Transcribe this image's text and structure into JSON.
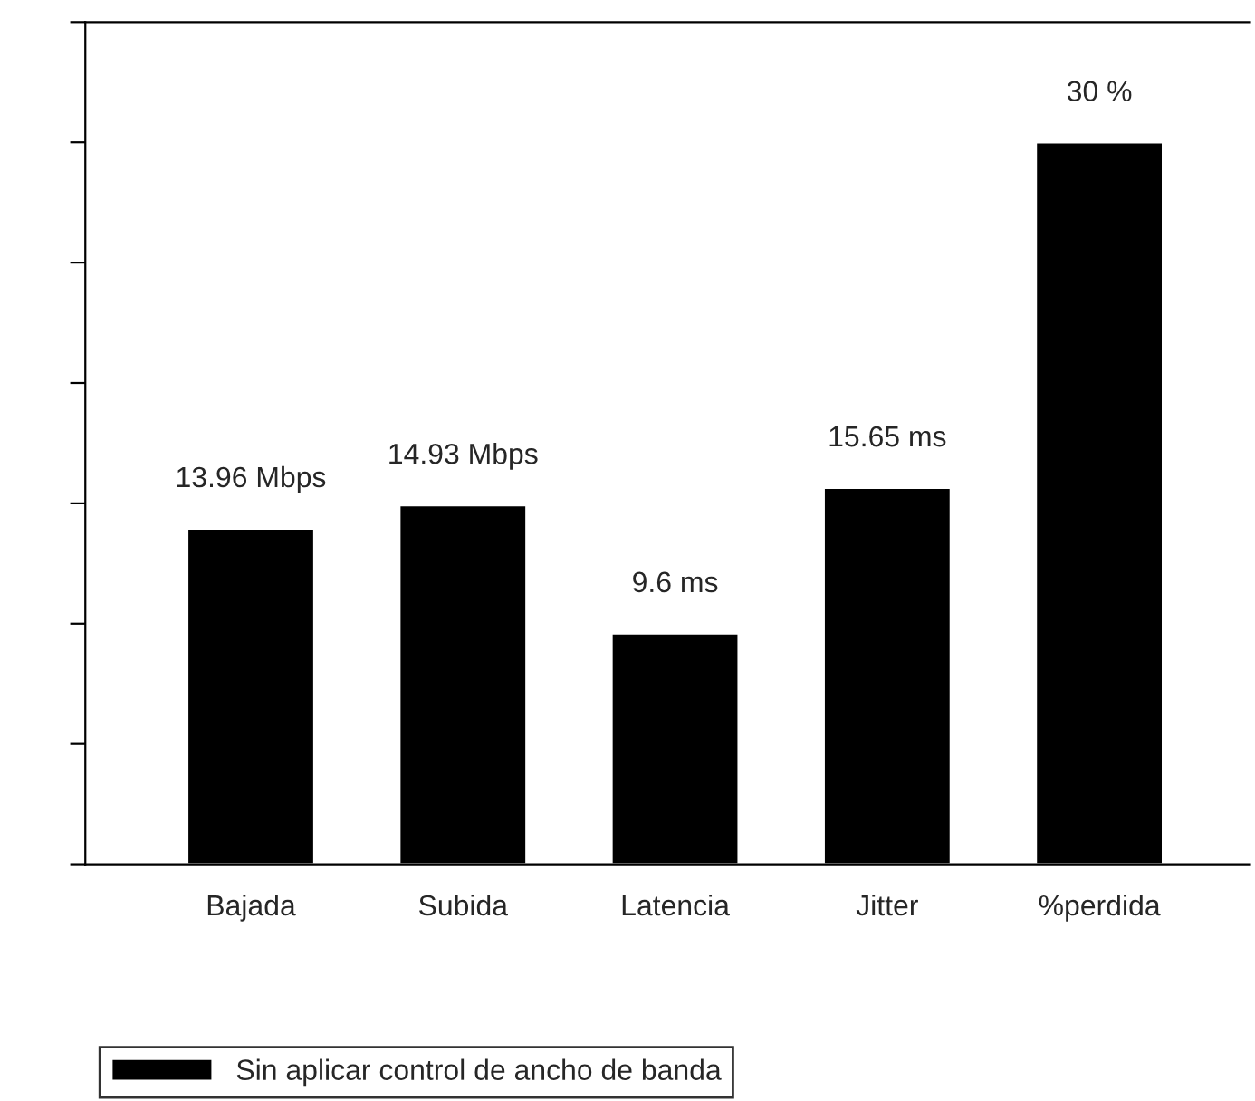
{
  "chart_data": {
    "type": "bar",
    "categories": [
      "Bajada",
      "Subida",
      "Latencia",
      "Jitter",
      "%perdida"
    ],
    "series": [
      {
        "name": "Sin aplicar control de ancho de banda",
        "color": "#000000",
        "values": [
          13.96,
          14.93,
          9.6,
          15.65,
          30
        ],
        "value_labels": [
          "13.96 Mbps",
          "14.93 Mbps",
          "9.6 ms",
          "15.65 ms",
          "30 %"
        ]
      }
    ],
    "ylim": [
      0,
      35
    ],
    "yticks": [
      {
        "value": 0,
        "label": null
      },
      {
        "value": 5,
        "label": null
      },
      {
        "value": 10,
        "label": null
      },
      {
        "value": 15,
        "label": null
      },
      {
        "value": 20,
        "label": null
      },
      {
        "value": 25,
        "label": null
      },
      {
        "value": 30,
        "label": null
      },
      {
        "value": 35,
        "label": null
      }
    ],
    "tick_labels": "x",
    "grid": false,
    "legend": "bottom left"
  }
}
